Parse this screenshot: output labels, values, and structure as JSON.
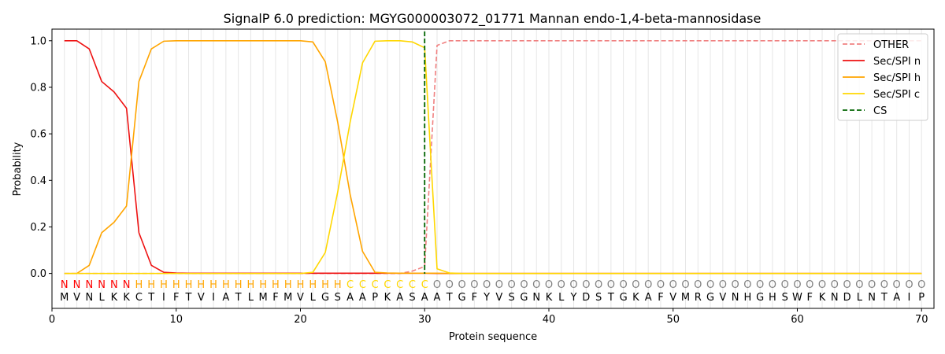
{
  "chart_data": {
    "type": "line",
    "title": "SignalP 6.0 prediction: MGYG000003072_01771 Mannan endo-1,4-beta-mannosidase",
    "xlabel": "Protein sequence",
    "ylabel": "Probability",
    "xlim": [
      0,
      71
    ],
    "ylim": [
      -0.15,
      1.05
    ],
    "xticks": [
      0,
      10,
      20,
      30,
      40,
      50,
      60,
      70
    ],
    "yticks": [
      0.0,
      0.2,
      0.4,
      0.6,
      0.8,
      1.0
    ],
    "ytick_labels": [
      "0.0",
      "0.2",
      "0.4",
      "0.6",
      "0.8",
      "1.0"
    ],
    "grid": "vertical lines at each residue",
    "legend_position": "top-right",
    "sequence": [
      "M",
      "V",
      "N",
      "L",
      "K",
      "K",
      "C",
      "T",
      "I",
      "F",
      "T",
      "V",
      "I",
      "A",
      "T",
      "L",
      "M",
      "F",
      "M",
      "V",
      "L",
      "G",
      "S",
      "A",
      "A",
      "P",
      "K",
      "A",
      "S",
      "A",
      "A",
      "T",
      "G",
      "F",
      "Y",
      "V",
      "S",
      "G",
      "N",
      "K",
      "L",
      "Y",
      "D",
      "S",
      "T",
      "G",
      "K",
      "A",
      "F",
      "V",
      "M",
      "R",
      "G",
      "V",
      "N",
      "H",
      "G",
      "H",
      "S",
      "W",
      "F",
      "K",
      "N",
      "D",
      "L",
      "N",
      "T",
      "A",
      "I",
      "P"
    ],
    "region_labels": [
      "N",
      "N",
      "N",
      "N",
      "N",
      "N",
      "H",
      "H",
      "H",
      "H",
      "H",
      "H",
      "H",
      "H",
      "H",
      "H",
      "H",
      "H",
      "H",
      "H",
      "H",
      "H",
      "H",
      "C",
      "C",
      "C",
      "C",
      "C",
      "C",
      "C",
      "O",
      "O",
      "O",
      "O",
      "O",
      "O",
      "O",
      "O",
      "O",
      "O",
      "O",
      "O",
      "O",
      "O",
      "O",
      "O",
      "O",
      "O",
      "O",
      "O",
      "O",
      "O",
      "O",
      "O",
      "O",
      "O",
      "O",
      "O",
      "O",
      "O",
      "O",
      "O",
      "O",
      "O",
      "O",
      "O",
      "O",
      "O",
      "O",
      "O"
    ],
    "region_colors": {
      "N": "#ff0000",
      "H": "#ffa500",
      "C": "#ffd700",
      "O": "#808080"
    },
    "cleavage_site": 30,
    "series": [
      {
        "name": "OTHER",
        "color": "#f08080",
        "style": "dashed",
        "values": [
          0,
          0,
          0,
          0,
          0,
          0,
          0,
          0,
          0,
          0,
          0,
          0,
          0,
          0,
          0,
          0,
          0,
          0,
          0,
          0,
          0,
          0,
          0,
          0,
          0,
          0,
          0,
          0,
          0.01,
          0.03,
          0.98,
          1.0,
          1.0,
          1.0,
          1.0,
          1.0,
          1.0,
          1.0,
          1.0,
          1.0,
          1.0,
          1.0,
          1.0,
          1.0,
          1.0,
          1.0,
          1.0,
          1.0,
          1.0,
          1.0,
          1.0,
          1.0,
          1.0,
          1.0,
          1.0,
          1.0,
          1.0,
          1.0,
          1.0,
          1.0,
          1.0,
          1.0,
          1.0,
          1.0,
          1.0,
          1.0,
          1.0,
          1.0,
          1.0,
          1.0
        ]
      },
      {
        "name": "Sec/SPI n",
        "color": "#ee1111",
        "style": "solid",
        "values": [
          1.0,
          1.0,
          0.965,
          0.825,
          0.78,
          0.71,
          0.175,
          0.035,
          0.005,
          0.002,
          0.001,
          0.001,
          0.001,
          0.001,
          0.001,
          0.001,
          0.001,
          0.001,
          0.001,
          0.001,
          0.001,
          0.001,
          0.001,
          0.001,
          0.001,
          0.001,
          0.001,
          0.001,
          0.001,
          0.001,
          0,
          0,
          0,
          0,
          0,
          0,
          0,
          0,
          0,
          0,
          0,
          0,
          0,
          0,
          0,
          0,
          0,
          0,
          0,
          0,
          0,
          0,
          0,
          0,
          0,
          0,
          0,
          0,
          0,
          0,
          0,
          0,
          0,
          0,
          0,
          0,
          0,
          0,
          0,
          0
        ]
      },
      {
        "name": "Sec/SPI h",
        "color": "#ffa500",
        "style": "solid",
        "values": [
          0,
          0,
          0.035,
          0.175,
          0.22,
          0.29,
          0.825,
          0.965,
          0.998,
          1.0,
          1.0,
          1.0,
          1.0,
          1.0,
          1.0,
          1.0,
          1.0,
          1.0,
          1.0,
          1.0,
          0.995,
          0.91,
          0.65,
          0.34,
          0.095,
          0.005,
          0.002,
          0.001,
          0.001,
          0.001,
          0.001,
          0,
          0,
          0,
          0,
          0,
          0,
          0,
          0,
          0,
          0,
          0,
          0,
          0,
          0,
          0,
          0,
          0,
          0,
          0,
          0,
          0,
          0,
          0,
          0,
          0,
          0,
          0,
          0,
          0,
          0,
          0,
          0,
          0,
          0,
          0,
          0,
          0,
          0,
          0
        ]
      },
      {
        "name": "Sec/SPI c",
        "color": "#ffd700",
        "style": "solid",
        "values": [
          0,
          0,
          0,
          0,
          0,
          0,
          0,
          0,
          0,
          0,
          0,
          0,
          0,
          0,
          0,
          0,
          0,
          0,
          0,
          0,
          0.005,
          0.09,
          0.35,
          0.65,
          0.905,
          0.998,
          1.0,
          1.0,
          0.995,
          0.97,
          0.02,
          0.002,
          0,
          0,
          0,
          0,
          0,
          0,
          0,
          0,
          0,
          0,
          0,
          0,
          0,
          0,
          0,
          0,
          0,
          0,
          0,
          0,
          0,
          0,
          0,
          0,
          0,
          0,
          0,
          0,
          0,
          0,
          0,
          0,
          0,
          0,
          0,
          0,
          0,
          0
        ]
      }
    ],
    "legend": [
      {
        "label": "OTHER",
        "color": "#f08080",
        "style": "dashed"
      },
      {
        "label": "Sec/SPI n",
        "color": "#ee1111",
        "style": "solid"
      },
      {
        "label": "Sec/SPI h",
        "color": "#ffa500",
        "style": "solid"
      },
      {
        "label": "Sec/SPI c",
        "color": "#ffd700",
        "style": "solid"
      },
      {
        "label": "CS",
        "color": "#006400",
        "style": "dashed"
      }
    ]
  }
}
